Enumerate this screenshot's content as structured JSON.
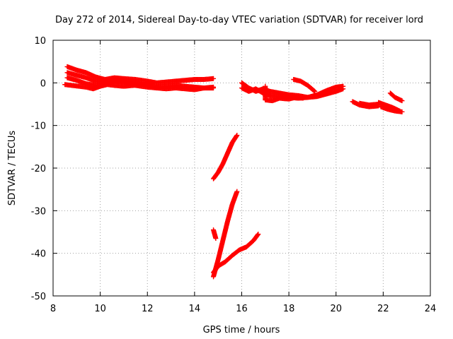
{
  "chart_data": {
    "type": "scatter",
    "title": "Day 272 of 2014, Sidereal Day-to-day VTEC variation (SDTVAR) for receiver lord",
    "xlabel": "GPS time / hours",
    "ylabel": "SDTVAR / TECUs",
    "xlim": [
      8,
      24
    ],
    "ylim": [
      -50,
      10
    ],
    "xticks": [
      8,
      10,
      12,
      14,
      16,
      18,
      20,
      22,
      24
    ],
    "yticks": [
      -50,
      -40,
      -30,
      -20,
      -10,
      0,
      10
    ],
    "grid": true,
    "marker": "plus",
    "color": "#ff0000",
    "series": [
      {
        "points": [
          [
            8.6,
            3.8
          ],
          [
            9.0,
            3.0
          ],
          [
            9.4,
            2.4
          ],
          [
            9.8,
            1.4
          ],
          [
            10.2,
            0.8
          ],
          [
            10.6,
            1.2
          ],
          [
            11.0,
            1.0
          ],
          [
            11.5,
            0.8
          ],
          [
            12.0,
            0.4
          ],
          [
            12.4,
            0.0
          ],
          [
            12.8,
            0.2
          ],
          [
            13.2,
            0.4
          ],
          [
            13.6,
            0.6
          ],
          [
            14.0,
            0.8
          ],
          [
            14.4,
            0.8
          ],
          [
            14.8,
            1.0
          ]
        ]
      },
      {
        "points": [
          [
            8.6,
            2.4
          ],
          [
            9.0,
            1.8
          ],
          [
            9.4,
            1.2
          ],
          [
            9.8,
            0.4
          ],
          [
            10.2,
            0.2
          ],
          [
            10.6,
            0.6
          ],
          [
            11.0,
            0.4
          ],
          [
            11.5,
            0.0
          ],
          [
            12.0,
            -0.6
          ],
          [
            12.4,
            -1.0
          ],
          [
            12.8,
            -0.8
          ],
          [
            13.2,
            -0.6
          ],
          [
            13.6,
            -0.8
          ],
          [
            14.0,
            -1.0
          ],
          [
            14.4,
            -1.2
          ],
          [
            14.8,
            -1.2
          ]
        ]
      },
      {
        "points": [
          [
            8.6,
            1.2
          ],
          [
            9.0,
            0.6
          ],
          [
            9.4,
            -0.2
          ],
          [
            9.8,
            -0.6
          ],
          [
            10.2,
            -0.4
          ],
          [
            10.6,
            0.4
          ],
          [
            11.0,
            0.2
          ],
          [
            11.5,
            -0.6
          ],
          [
            12.0,
            -1.0
          ],
          [
            12.4,
            -1.2
          ],
          [
            12.8,
            -1.4
          ],
          [
            13.2,
            -1.2
          ],
          [
            13.6,
            -1.4
          ],
          [
            14.0,
            -1.6
          ],
          [
            14.4,
            -1.2
          ],
          [
            14.8,
            -1.0
          ]
        ]
      },
      {
        "points": [
          [
            8.5,
            -0.4
          ],
          [
            8.8,
            -0.6
          ],
          [
            9.1,
            -0.8
          ],
          [
            9.4,
            -1.0
          ],
          [
            9.7,
            -1.4
          ],
          [
            10.0,
            -0.8
          ],
          [
            10.3,
            -0.4
          ],
          [
            10.6,
            -0.6
          ],
          [
            11.0,
            -0.8
          ],
          [
            11.4,
            -0.6
          ],
          [
            11.8,
            -0.4
          ],
          [
            12.2,
            -0.2
          ]
        ]
      },
      {
        "points": [
          [
            14.8,
            -22.5
          ],
          [
            15.0,
            -21.0
          ],
          [
            15.2,
            -19.0
          ],
          [
            15.4,
            -16.5
          ],
          [
            15.6,
            -14.0
          ],
          [
            15.8,
            -12.3
          ]
        ]
      },
      {
        "points": [
          [
            14.8,
            -45.5
          ],
          [
            15.0,
            -41.5
          ],
          [
            15.2,
            -37.0
          ],
          [
            15.4,
            -32.5
          ],
          [
            15.6,
            -28.5
          ],
          [
            15.8,
            -25.5
          ]
        ]
      },
      {
        "points": [
          [
            14.8,
            -44.5
          ],
          [
            15.0,
            -43.0
          ],
          [
            15.3,
            -42.0
          ],
          [
            15.6,
            -40.5
          ],
          [
            15.9,
            -39.2
          ],
          [
            16.2,
            -38.5
          ],
          [
            16.5,
            -37.0
          ],
          [
            16.7,
            -35.5
          ]
        ]
      },
      {
        "points": [
          [
            14.8,
            -34.5
          ],
          [
            14.85,
            -35.5
          ],
          [
            14.9,
            -36.5
          ]
        ]
      },
      {
        "points": [
          [
            16.0,
            0.0
          ],
          [
            16.3,
            -1.2
          ],
          [
            16.6,
            -2.0
          ],
          [
            16.9,
            -1.4
          ],
          [
            17.2,
            -2.0
          ],
          [
            17.6,
            -2.4
          ],
          [
            18.0,
            -2.8
          ],
          [
            18.4,
            -3.0
          ],
          [
            18.8,
            -3.4
          ],
          [
            19.2,
            -3.2
          ],
          [
            19.6,
            -2.6
          ],
          [
            20.0,
            -2.0
          ],
          [
            20.3,
            -1.4
          ]
        ]
      },
      {
        "points": [
          [
            16.0,
            -1.2
          ],
          [
            16.3,
            -2.0
          ],
          [
            16.6,
            -1.4
          ],
          [
            16.9,
            -2.4
          ],
          [
            17.2,
            -3.0
          ],
          [
            17.6,
            -3.2
          ],
          [
            18.0,
            -3.4
          ],
          [
            18.4,
            -3.6
          ],
          [
            18.8,
            -3.4
          ],
          [
            19.2,
            -2.8
          ],
          [
            19.6,
            -1.8
          ],
          [
            20.0,
            -1.0
          ],
          [
            20.3,
            -0.8
          ]
        ]
      },
      {
        "points": [
          [
            17.0,
            -0.8
          ],
          [
            17.0,
            -4.0
          ],
          [
            17.3,
            -4.2
          ],
          [
            17.6,
            -3.6
          ],
          [
            18.0,
            -3.8
          ],
          [
            18.3,
            -3.4
          ],
          [
            18.6,
            -3.6
          ]
        ]
      },
      {
        "points": [
          [
            18.2,
            0.8
          ],
          [
            18.5,
            0.4
          ],
          [
            18.8,
            -0.6
          ],
          [
            19.1,
            -2.0
          ]
        ]
      },
      {
        "points": [
          [
            20.7,
            -4.4
          ],
          [
            21.0,
            -5.2
          ],
          [
            21.4,
            -5.6
          ],
          [
            21.8,
            -5.4
          ]
        ]
      },
      {
        "points": [
          [
            21.0,
            -4.8
          ],
          [
            21.4,
            -5.2
          ],
          [
            21.8,
            -5.0
          ]
        ]
      },
      {
        "points": [
          [
            21.8,
            -4.6
          ],
          [
            22.1,
            -5.2
          ],
          [
            22.4,
            -5.8
          ],
          [
            22.7,
            -6.6
          ]
        ]
      },
      {
        "points": [
          [
            21.9,
            -5.6
          ],
          [
            22.2,
            -6.2
          ],
          [
            22.5,
            -6.6
          ],
          [
            22.8,
            -6.8
          ]
        ]
      },
      {
        "points": [
          [
            22.3,
            -2.4
          ],
          [
            22.5,
            -3.4
          ],
          [
            22.8,
            -4.2
          ]
        ]
      }
    ]
  }
}
